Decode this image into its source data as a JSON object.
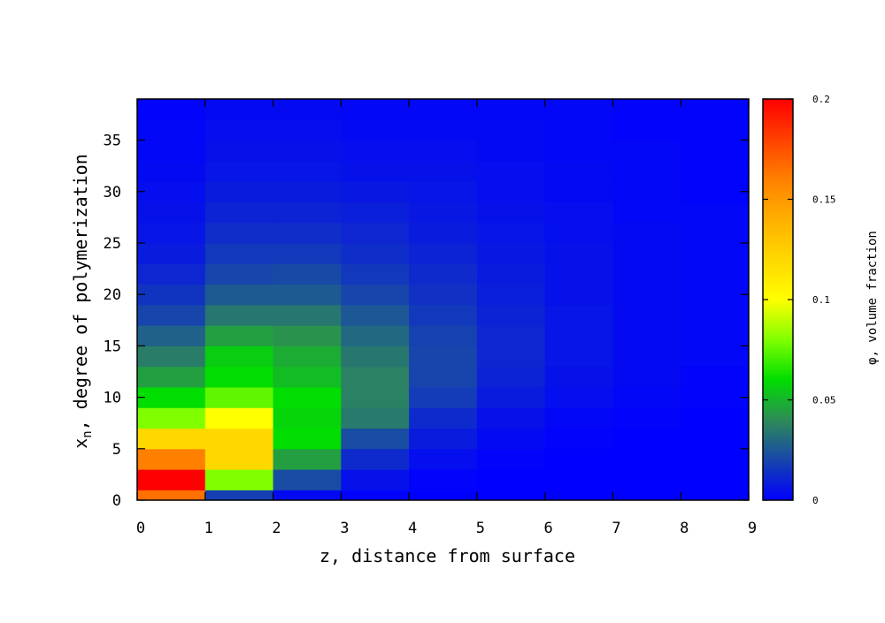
{
  "chart_data": {
    "type": "heatmap",
    "title": "",
    "xlabel": "z, distance from surface",
    "ylabel_main": "x",
    "ylabel_sub": "n",
    "ylabel_rest": ", degree of polymerization",
    "colorbar_label": "φ, volume fraction",
    "x_ticks": [
      "0",
      "1",
      "2",
      "3",
      "4",
      "5",
      "6",
      "7",
      "8",
      "9"
    ],
    "y_ticks": [
      "0",
      "5",
      "10",
      "15",
      "20",
      "25",
      "30",
      "35"
    ],
    "colorbar_ticks": [
      "0",
      "0.05",
      "0.1",
      "0.15",
      "0.2"
    ],
    "xlim": [
      0,
      9
    ],
    "ylim": [
      0,
      39
    ],
    "clim": [
      0,
      0.2
    ],
    "colormap": [
      [
        0.0,
        "#0000ff"
      ],
      [
        0.2,
        "#2e8b57"
      ],
      [
        0.3,
        "#00dd00"
      ],
      [
        0.4,
        "#80ff00"
      ],
      [
        0.5,
        "#ffff00"
      ],
      [
        0.7,
        "#ffb000"
      ],
      [
        0.8,
        "#ff8000"
      ],
      [
        1.0,
        "#ff0000"
      ]
    ],
    "x_edges": [
      0,
      1,
      2,
      3,
      4,
      5,
      6,
      7,
      8,
      9
    ],
    "y_edges": [
      0,
      1,
      3,
      5,
      7,
      9,
      11,
      13,
      15,
      17,
      19,
      21,
      23,
      25,
      27,
      29,
      31,
      33,
      35,
      37,
      39
    ],
    "values": [
      [
        0.165,
        0.018,
        0.003,
        0.001,
        0.0,
        0.0,
        0.0,
        0.0,
        0.0
      ],
      [
        0.2,
        0.08,
        0.022,
        0.005,
        0.001,
        0.0,
        0.0,
        0.0,
        0.0
      ],
      [
        0.16,
        0.12,
        0.045,
        0.012,
        0.004,
        0.001,
        0.0,
        0.0,
        0.0
      ],
      [
        0.12,
        0.12,
        0.06,
        0.022,
        0.008,
        0.003,
        0.001,
        0.0,
        0.0
      ],
      [
        0.08,
        0.1,
        0.058,
        0.035,
        0.012,
        0.005,
        0.002,
        0.001,
        0.0
      ],
      [
        0.06,
        0.075,
        0.06,
        0.037,
        0.017,
        0.008,
        0.004,
        0.002,
        0.001
      ],
      [
        0.045,
        0.06,
        0.052,
        0.037,
        0.02,
        0.01,
        0.005,
        0.003,
        0.001
      ],
      [
        0.036,
        0.056,
        0.048,
        0.034,
        0.02,
        0.011,
        0.006,
        0.003,
        0.002
      ],
      [
        0.028,
        0.045,
        0.042,
        0.03,
        0.019,
        0.011,
        0.006,
        0.003,
        0.002
      ],
      [
        0.02,
        0.034,
        0.034,
        0.025,
        0.016,
        0.01,
        0.006,
        0.003,
        0.002
      ],
      [
        0.015,
        0.026,
        0.026,
        0.02,
        0.014,
        0.009,
        0.005,
        0.003,
        0.002
      ],
      [
        0.011,
        0.02,
        0.021,
        0.016,
        0.012,
        0.008,
        0.005,
        0.003,
        0.002
      ],
      [
        0.008,
        0.016,
        0.016,
        0.013,
        0.01,
        0.007,
        0.005,
        0.003,
        0.002
      ],
      [
        0.006,
        0.013,
        0.013,
        0.011,
        0.008,
        0.006,
        0.004,
        0.003,
        0.002
      ],
      [
        0.005,
        0.01,
        0.01,
        0.009,
        0.007,
        0.005,
        0.004,
        0.002,
        0.002
      ],
      [
        0.004,
        0.008,
        0.008,
        0.007,
        0.006,
        0.004,
        0.003,
        0.002,
        0.001
      ],
      [
        0.003,
        0.006,
        0.006,
        0.005,
        0.005,
        0.004,
        0.003,
        0.002,
        0.001
      ],
      [
        0.002,
        0.005,
        0.005,
        0.004,
        0.004,
        0.003,
        0.002,
        0.002,
        0.001
      ],
      [
        0.002,
        0.004,
        0.004,
        0.003,
        0.003,
        0.003,
        0.002,
        0.001,
        0.001
      ],
      [
        0.001,
        0.003,
        0.003,
        0.002,
        0.002,
        0.002,
        0.002,
        0.001,
        0.001
      ]
    ],
    "grid": false,
    "colorbar_position": "right"
  }
}
